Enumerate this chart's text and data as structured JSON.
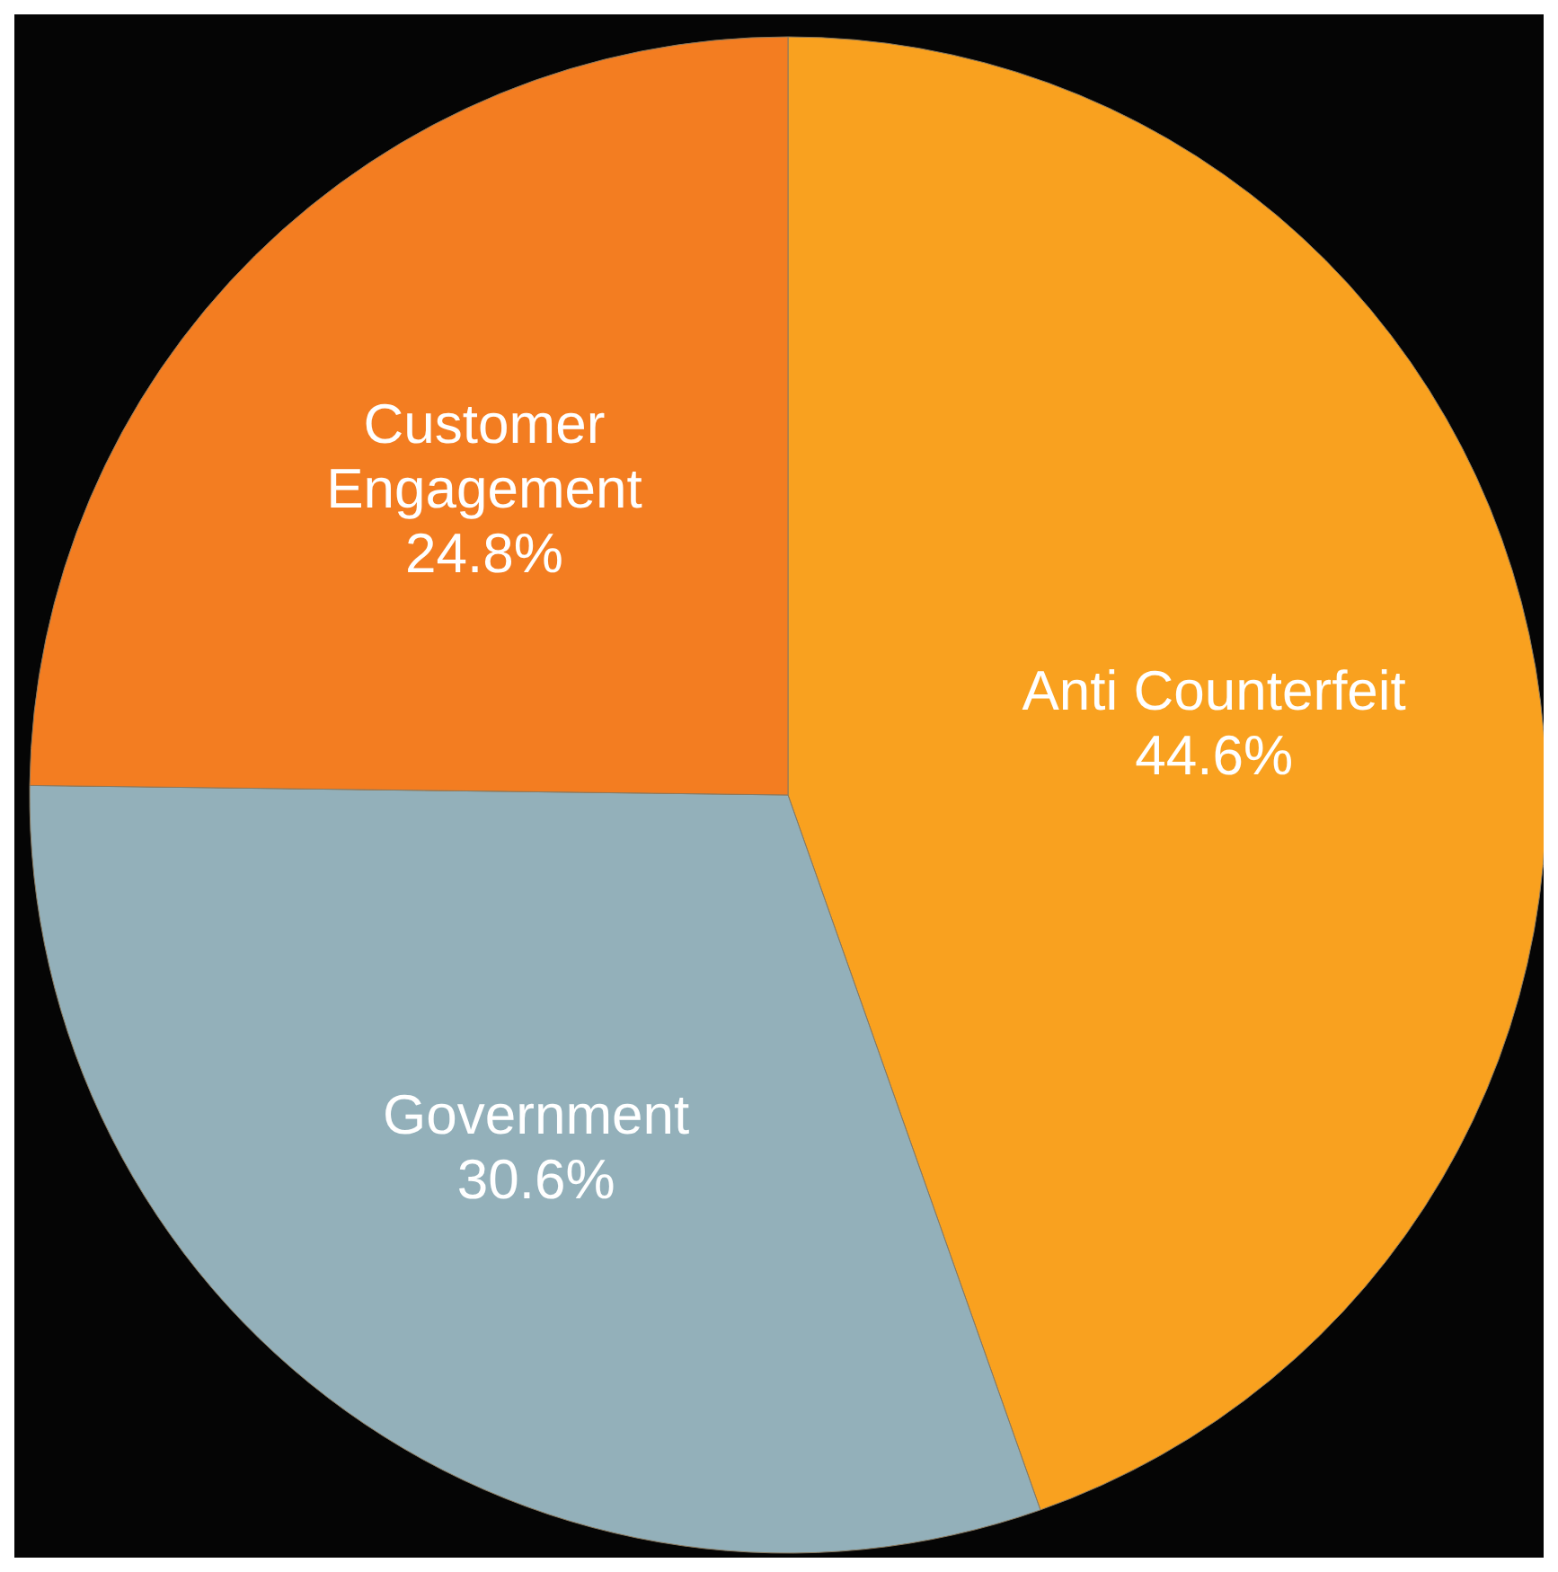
{
  "chart_data": {
    "type": "pie",
    "categories": [
      "Anti Counterfeit",
      "Government",
      "Customer Engagement"
    ],
    "values": [
      44.6,
      30.6,
      24.8
    ],
    "colors": [
      "#f9a11f",
      "#93b0ba",
      "#f37d21"
    ],
    "value_labels": [
      "44.6%",
      "30.6%",
      "24.8%"
    ],
    "legend": false
  }
}
